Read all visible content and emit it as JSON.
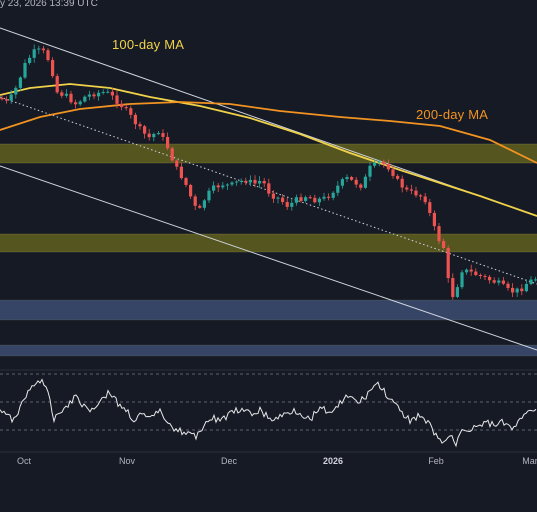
{
  "header": {
    "text": "y 23, 2026 13:39 UTC"
  },
  "colors": {
    "background": "#161a25",
    "bull": "#26a69a",
    "bear": "#ef5350",
    "ma100": "#f0d24a",
    "ma200": "#f29321",
    "resistance_zone": "#6b6a1f",
    "support_zone": "#3a4a6e",
    "rsi_line": "#e8e8e8"
  },
  "chart_data": {
    "type": "candlestick",
    "annotations": {
      "ma100_label": "100-day MA",
      "ma200_label": "200-day MA"
    },
    "x_ticks": [
      "Oct",
      "Nov",
      "Dec",
      "2026",
      "Feb",
      "Mar"
    ],
    "x_ticks_bold": [
      "2026"
    ],
    "series": [
      {
        "name": "100-day MA"
      },
      {
        "name": "200-day MA"
      }
    ],
    "zones": [
      {
        "kind": "resistance"
      },
      {
        "kind": "resistance"
      },
      {
        "kind": "support"
      },
      {
        "kind": "support"
      }
    ],
    "panels": [
      "price",
      "rsi"
    ],
    "grid": false
  }
}
